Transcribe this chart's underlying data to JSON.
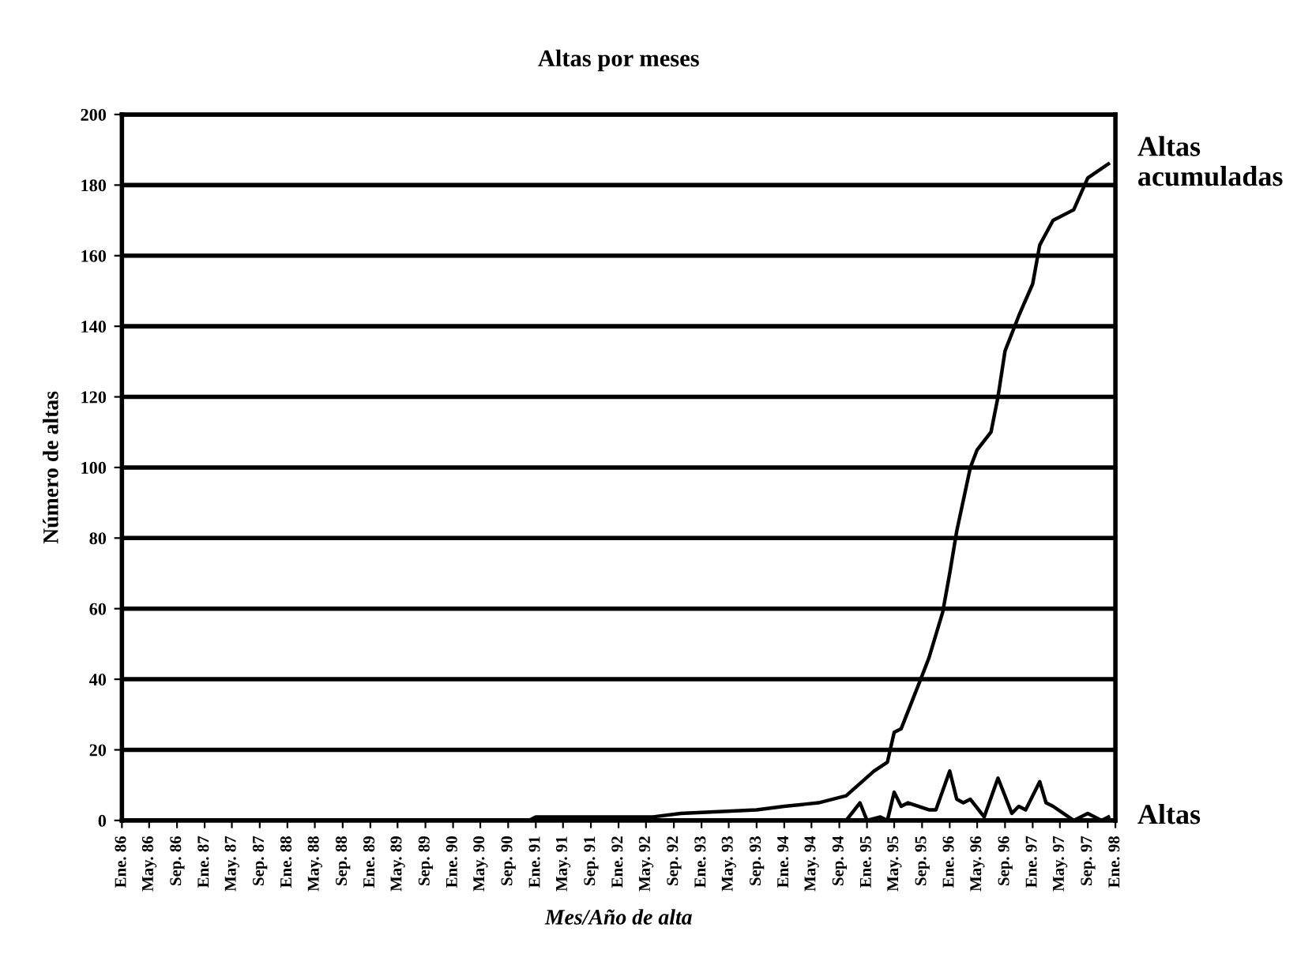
{
  "chart_data": {
    "type": "line",
    "title": "Altas por meses",
    "xlabel": "Mes/Año de alta",
    "ylabel": "Número de altas",
    "xlim": [
      "1986-01",
      "1998-01"
    ],
    "xticks": [
      {
        "value": "1986-01",
        "label": "Ene. 86"
      },
      {
        "value": "1986-05",
        "label": "May. 86"
      },
      {
        "value": "1986-09",
        "label": "Sep. 86"
      },
      {
        "value": "1987-01",
        "label": "Ene. 87"
      },
      {
        "value": "1987-05",
        "label": "May. 87"
      },
      {
        "value": "1987-09",
        "label": "Sep. 87"
      },
      {
        "value": "1988-01",
        "label": "Ene. 88"
      },
      {
        "value": "1988-05",
        "label": "May. 88"
      },
      {
        "value": "1988-09",
        "label": "Sep. 88"
      },
      {
        "value": "1989-01",
        "label": "Ene. 89"
      },
      {
        "value": "1989-05",
        "label": "May. 89"
      },
      {
        "value": "1989-09",
        "label": "Sep. 89"
      },
      {
        "value": "1990-01",
        "label": "Ene. 90"
      },
      {
        "value": "1990-05",
        "label": "May. 90"
      },
      {
        "value": "1990-09",
        "label": "Sep. 90"
      },
      {
        "value": "1991-01",
        "label": "Ene. 91"
      },
      {
        "value": "1991-05",
        "label": "May. 91"
      },
      {
        "value": "1991-09",
        "label": "Sep. 91"
      },
      {
        "value": "1992-01",
        "label": "Ene. 92"
      },
      {
        "value": "1992-05",
        "label": "May. 92"
      },
      {
        "value": "1992-09",
        "label": "Sep. 92"
      },
      {
        "value": "1993-01",
        "label": "Ene. 93"
      },
      {
        "value": "1993-05",
        "label": "May. 93"
      },
      {
        "value": "1993-09",
        "label": "Sep. 93"
      },
      {
        "value": "1994-01",
        "label": "Ene. 94"
      },
      {
        "value": "1994-05",
        "label": "May. 94"
      },
      {
        "value": "1994-09",
        "label": "Sep. 94"
      },
      {
        "value": "1995-01",
        "label": "Ene. 95"
      },
      {
        "value": "1995-05",
        "label": "May. 95"
      },
      {
        "value": "1995-09",
        "label": "Sep. 95"
      },
      {
        "value": "1996-01",
        "label": "Ene. 96"
      },
      {
        "value": "1996-05",
        "label": "May. 96"
      },
      {
        "value": "1996-09",
        "label": "Sep. 96"
      },
      {
        "value": "1997-01",
        "label": "Ene. 97"
      },
      {
        "value": "1997-05",
        "label": "May. 97"
      },
      {
        "value": "1997-09",
        "label": "Sep. 97"
      },
      {
        "value": "1998-01",
        "label": "Ene. 98"
      }
    ],
    "ylim": [
      0,
      200
    ],
    "yticks": [
      0,
      20,
      40,
      60,
      80,
      100,
      120,
      140,
      160,
      180,
      200
    ],
    "grid": "y",
    "legend": false,
    "series": [
      {
        "name": "Altas acumuladas",
        "color": "#000000",
        "x": [
          "1986-01",
          "1990-12",
          "1991-01",
          "1992-06",
          "1992-10",
          "1993-09",
          "1994-01",
          "1994-06",
          "1994-10",
          "1995-02",
          "1995-04",
          "1995-05",
          "1995-06",
          "1995-09",
          "1995-10",
          "1995-12",
          "1996-01",
          "1996-02",
          "1996-04",
          "1996-05",
          "1996-07",
          "1996-08",
          "1996-09",
          "1996-11",
          "1997-01",
          "1997-02",
          "1997-04",
          "1997-07",
          "1997-09",
          "1997-12"
        ],
        "values": [
          0,
          0,
          1,
          1,
          2,
          3,
          4,
          5,
          7,
          14,
          16.5,
          25,
          26,
          41,
          46,
          59,
          70,
          82,
          100,
          105,
          110,
          120,
          133,
          143,
          152,
          163,
          170,
          173,
          182,
          186
        ]
      },
      {
        "name": "Altas",
        "color": "#000000",
        "x": [
          "1986-01",
          "1994-10",
          "1994-12",
          "1995-01",
          "1995-03",
          "1995-04",
          "1995-05",
          "1995-06",
          "1995-07",
          "1995-10",
          "1995-11",
          "1996-01",
          "1996-02",
          "1996-03",
          "1996-04",
          "1996-06",
          "1996-08",
          "1996-10",
          "1996-11",
          "1996-12",
          "1997-02",
          "1997-03",
          "1997-04",
          "1997-07",
          "1997-09",
          "1997-11",
          "1997-12"
        ],
        "values": [
          0,
          0,
          5,
          0,
          1,
          0,
          8,
          4,
          5,
          3,
          3,
          14,
          6,
          5,
          6,
          1,
          12,
          2,
          4,
          3,
          11,
          5,
          4,
          0,
          2,
          0,
          1
        ]
      }
    ]
  }
}
